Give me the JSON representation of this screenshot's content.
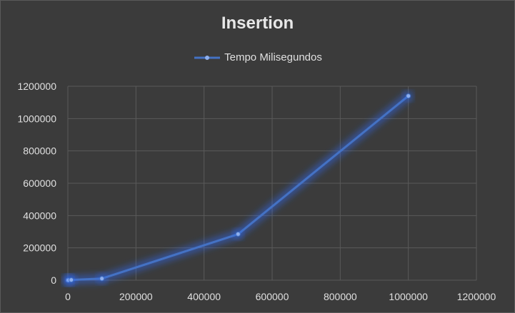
{
  "chart_data": {
    "type": "scatter",
    "title": "Insertion",
    "xlabel": "",
    "ylabel": "",
    "xlim": [
      0,
      1200000
    ],
    "ylim": [
      0,
      1200000
    ],
    "x_ticks": [
      "0",
      "200000",
      "400000",
      "600000",
      "800000",
      "1000000",
      "1200000"
    ],
    "y_ticks": [
      "0",
      "200000",
      "400000",
      "600000",
      "800000",
      "1000000",
      "1200000"
    ],
    "grid": true,
    "legend_position": "top",
    "series": [
      {
        "name": "Tempo Milisegundos",
        "color": "#4472c4",
        "x": [
          100,
          1000,
          10000,
          100000,
          500000,
          1000000
        ],
        "y": [
          5,
          50,
          1500,
          10000,
          285000,
          1140000
        ]
      }
    ]
  },
  "colors": {
    "background": "#3b3b3b",
    "gridline": "#5a5a5a",
    "series": "#4472c4",
    "glow": "#2f6bff",
    "text": "#e0e0e0"
  }
}
